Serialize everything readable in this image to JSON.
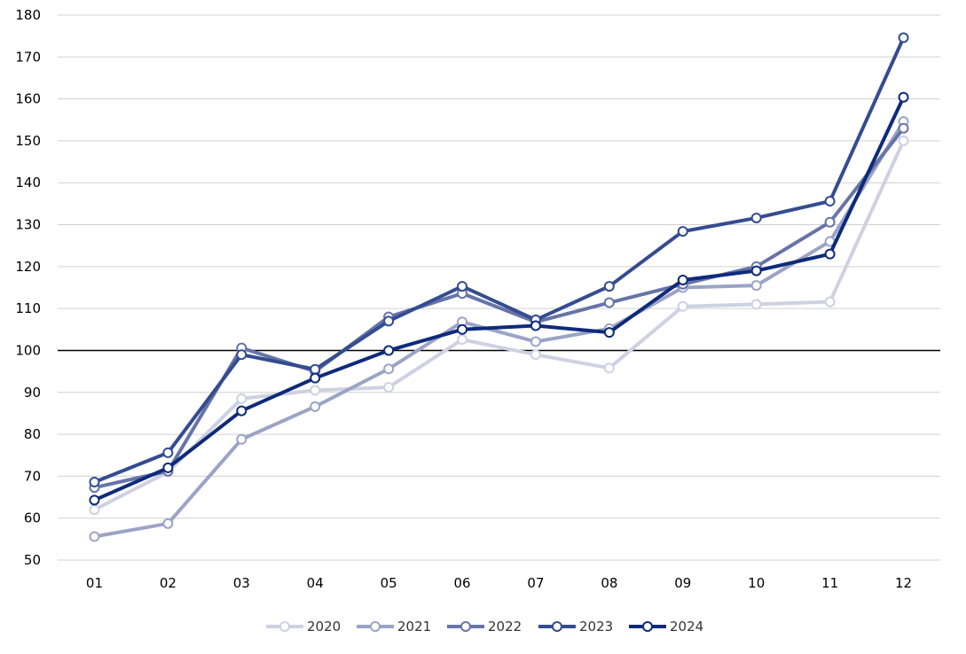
{
  "chart_data": {
    "type": "line",
    "title": "",
    "xlabel": "",
    "ylabel": "",
    "categories": [
      "01",
      "02",
      "03",
      "04",
      "05",
      "06",
      "07",
      "08",
      "09",
      "10",
      "11",
      "12"
    ],
    "ylim": [
      50,
      180
    ],
    "yticks": [
      50,
      60,
      70,
      80,
      90,
      100,
      110,
      120,
      130,
      140,
      150,
      160,
      170,
      180
    ],
    "reference_line": 100,
    "grid": true,
    "legend_position": "bottom",
    "series": [
      {
        "name": "2020",
        "color": "#cdd1e2",
        "values": [
          62,
          71,
          88.5,
          90.5,
          91.2,
          102.6,
          99,
          95.8,
          110.5,
          111,
          111.6,
          150
        ]
      },
      {
        "name": "2021",
        "color": "#9ba4c6",
        "values": [
          55.6,
          58.7,
          78.8,
          86.6,
          95.6,
          106.8,
          102.1,
          105.2,
          115,
          115.5,
          126,
          154.6
        ]
      },
      {
        "name": "2022",
        "color": "#6674a8",
        "values": [
          67.3,
          71.2,
          100.6,
          95,
          108,
          113.6,
          106.8,
          111.4,
          115.8,
          120,
          130.6,
          153
        ]
      },
      {
        "name": "2023",
        "color": "#344c90",
        "values": [
          68.6,
          75.6,
          99,
          95.5,
          107,
          115.3,
          107.3,
          115.3,
          128.4,
          131.6,
          135.6,
          174.6
        ]
      },
      {
        "name": "2024",
        "color": "#0e2a7a",
        "values": [
          64.3,
          72,
          85.6,
          93.4,
          100,
          105,
          105.9,
          104.3,
          116.8,
          119,
          123,
          160.4
        ]
      }
    ]
  }
}
